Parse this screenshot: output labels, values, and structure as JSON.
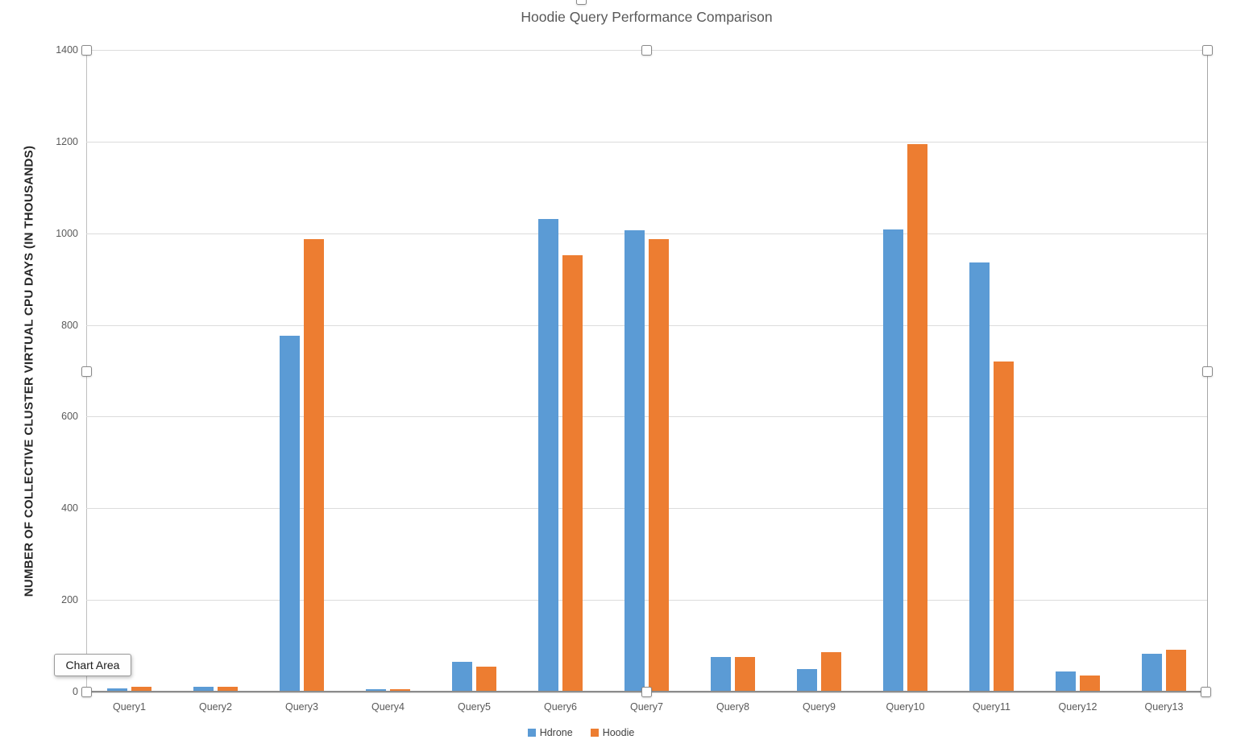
{
  "chart": {
    "tooltip_label": "Chart Area"
  },
  "chart_data": {
    "type": "bar",
    "title": "Hoodie Query Performance Comparison",
    "xlabel": "",
    "ylabel": "NUMBER OF COLLECTIVE CLUSTER VIRTUAL CPU DAYS (IN THOUSANDS)",
    "ylim": [
      0,
      1400
    ],
    "yticks": [
      0,
      200,
      400,
      600,
      800,
      1000,
      1200,
      1400
    ],
    "grid": true,
    "legend_position": "bottom",
    "categories": [
      "Query1",
      "Query2",
      "Query3",
      "Query4",
      "Query5",
      "Query6",
      "Query7",
      "Query8",
      "Query9",
      "Query10",
      "Query11",
      "Query12",
      "Query13"
    ],
    "series": [
      {
        "name": "Hdrone",
        "color": "#5B9BD5",
        "values": [
          5,
          9,
          775,
          4,
          63,
          1030,
          1005,
          74,
          48,
          1007,
          935,
          43,
          81
        ]
      },
      {
        "name": "Hoodie",
        "color": "#ED7D31",
        "values": [
          9,
          8,
          985,
          3,
          52,
          950,
          985,
          74,
          85,
          1192,
          718,
          33,
          89
        ]
      }
    ]
  }
}
